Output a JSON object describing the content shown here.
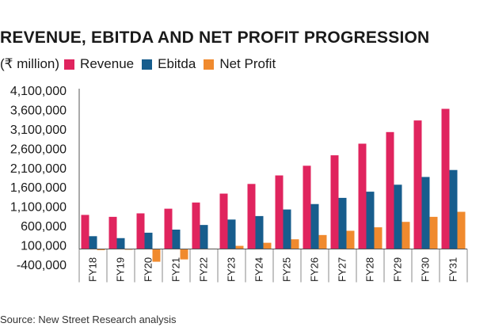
{
  "title": "REVENUE, EBITDA AND NET PROFIT PROGRESSION",
  "unit_label": "(₹ million)",
  "source": "Source: New Street Research analysis",
  "colors": {
    "revenue": "#e0245e",
    "ebitda": "#175d8d",
    "net_profit": "#f08a2e",
    "axis": "#555555"
  },
  "chart_data": {
    "type": "bar",
    "title": "REVENUE, EBITDA AND NET PROFIT PROGRESSION",
    "ylabel": "(₹ million)",
    "ylim": [
      -400000,
      4100000
    ],
    "yticks": [
      4100000,
      3600000,
      3100000,
      2600000,
      2100000,
      1600000,
      1100000,
      600000,
      100000,
      -400000
    ],
    "ytick_labels": [
      "4,100,000",
      "3,600,000",
      "3,100,000",
      "2,600,000",
      "2,100,000",
      "1,600,000",
      "1,100,000",
      "600,000",
      "100,000",
      "-400,000"
    ],
    "categories": [
      "FY18",
      "FY19",
      "FY20",
      "FY21",
      "FY22",
      "FY23",
      "FY24",
      "FY25",
      "FY26",
      "FY27",
      "FY28",
      "FY29",
      "FY30",
      "FY31"
    ],
    "legend_position": "top",
    "grid": false,
    "series": [
      {
        "name": "Revenue",
        "color": "#e0245e",
        "values": [
          880000,
          830000,
          920000,
          1040000,
          1200000,
          1430000,
          1680000,
          1900000,
          2150000,
          2420000,
          2720000,
          3020000,
          3320000,
          3620000
        ]
      },
      {
        "name": "Ebitda",
        "color": "#175d8d",
        "values": [
          330000,
          280000,
          420000,
          500000,
          620000,
          760000,
          850000,
          1020000,
          1160000,
          1320000,
          1480000,
          1660000,
          1860000,
          2040000
        ]
      },
      {
        "name": "Net Profit",
        "color": "#f08a2e",
        "values": [
          -30000,
          -20000,
          -330000,
          -270000,
          10000,
          80000,
          160000,
          250000,
          360000,
          470000,
          560000,
          700000,
          830000,
          960000
        ]
      }
    ]
  }
}
